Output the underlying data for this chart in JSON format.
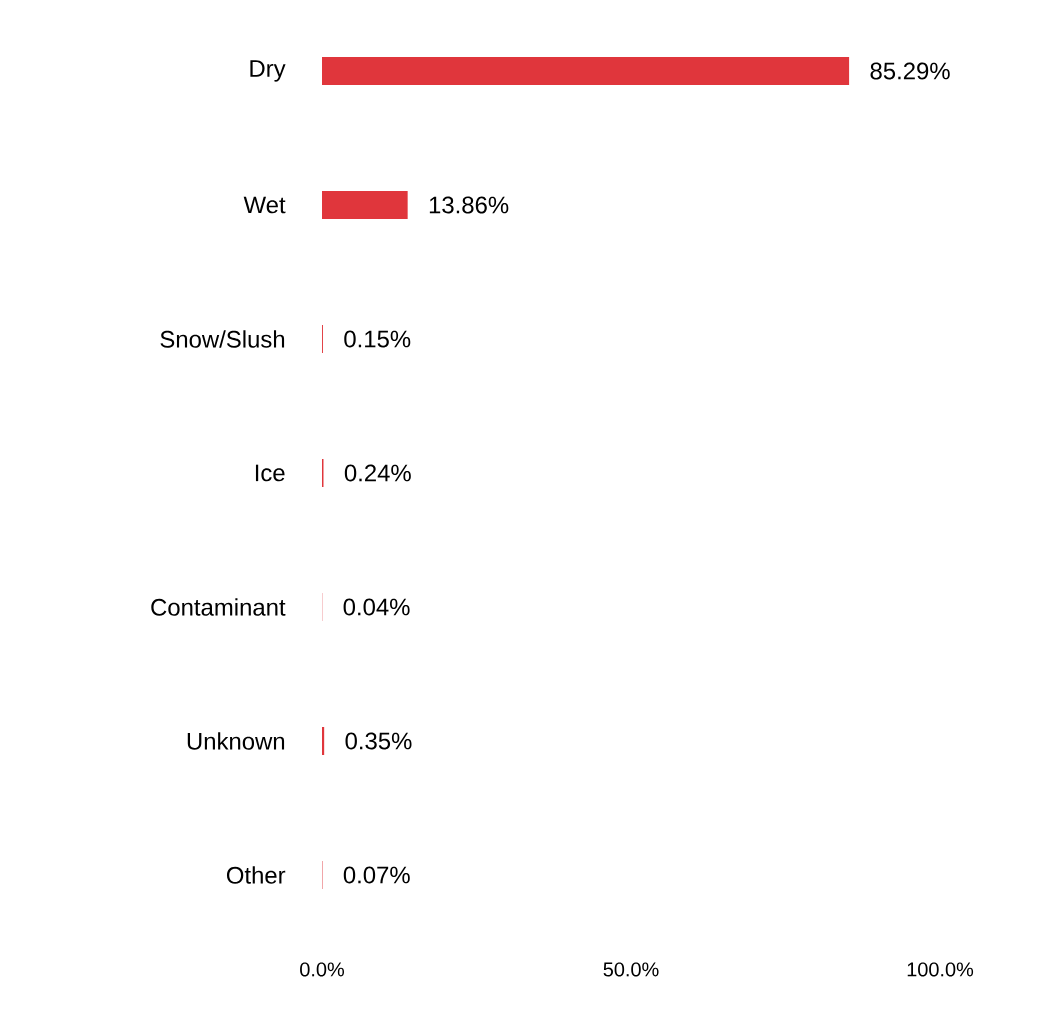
{
  "chart_data": {
    "type": "bar",
    "orientation": "horizontal",
    "categories": [
      "Dry",
      "Wet",
      "Snow/Slush",
      "Ice",
      "Contaminant",
      "Unknown",
      "Other"
    ],
    "values": [
      85.29,
      13.86,
      0.15,
      0.24,
      0.04,
      0.35,
      0.07
    ],
    "value_labels": [
      "85.29%",
      "13.86%",
      "0.15%",
      "0.24%",
      "0.04%",
      "0.35%",
      "0.07%"
    ],
    "color": "#e0363c",
    "xlim": [
      0,
      100
    ],
    "xticks": [
      {
        "value": 0,
        "label": "0.0%"
      },
      {
        "value": 50,
        "label": "50.0%"
      },
      {
        "value": 100,
        "label": "100.0%"
      }
    ]
  }
}
